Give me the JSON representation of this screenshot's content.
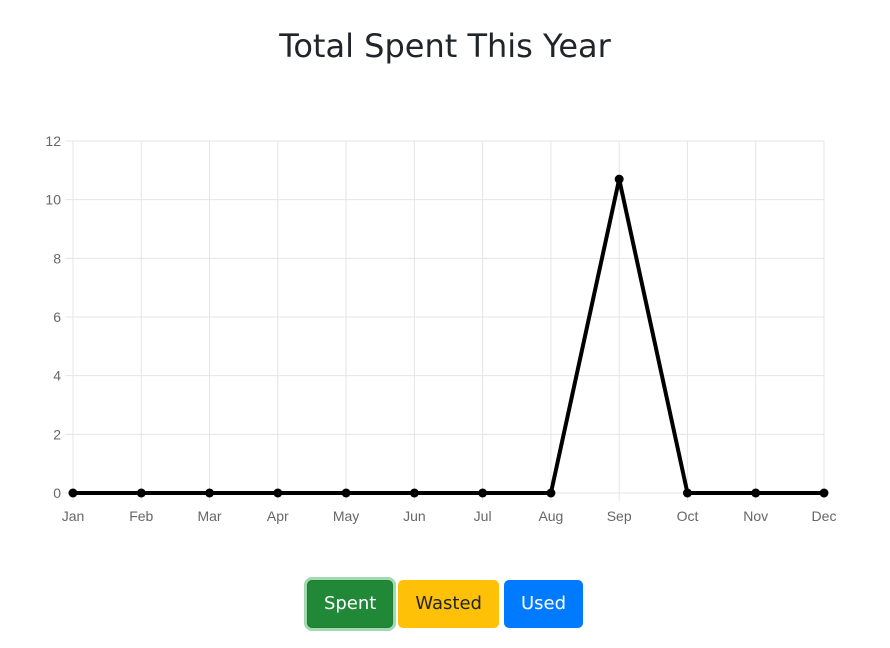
{
  "header": {
    "title": "Total Spent This Year"
  },
  "buttons": {
    "spent_label": "Spent",
    "wasted_label": "Wasted",
    "used_label": "Used"
  },
  "colors": {
    "line": "#000000",
    "grid": "#e5e5e5",
    "tick_text": "#666666",
    "spent": "#218838",
    "wasted": "#ffc107",
    "used": "#007bff"
  },
  "chart_data": {
    "type": "line",
    "title": "Total Spent This Year",
    "xlabel": "",
    "ylabel": "",
    "categories": [
      "Jan",
      "Feb",
      "Mar",
      "Apr",
      "May",
      "Jun",
      "Jul",
      "Aug",
      "Sep",
      "Oct",
      "Nov",
      "Dec"
    ],
    "series": [
      {
        "values": [
          0,
          0,
          0,
          0,
          0,
          0,
          0,
          0,
          10.7,
          0,
          0,
          0
        ]
      }
    ],
    "ylim": [
      0,
      12
    ],
    "yticks": [
      0,
      2,
      4,
      6,
      8,
      10,
      12
    ],
    "grid": true,
    "legend": "none"
  }
}
